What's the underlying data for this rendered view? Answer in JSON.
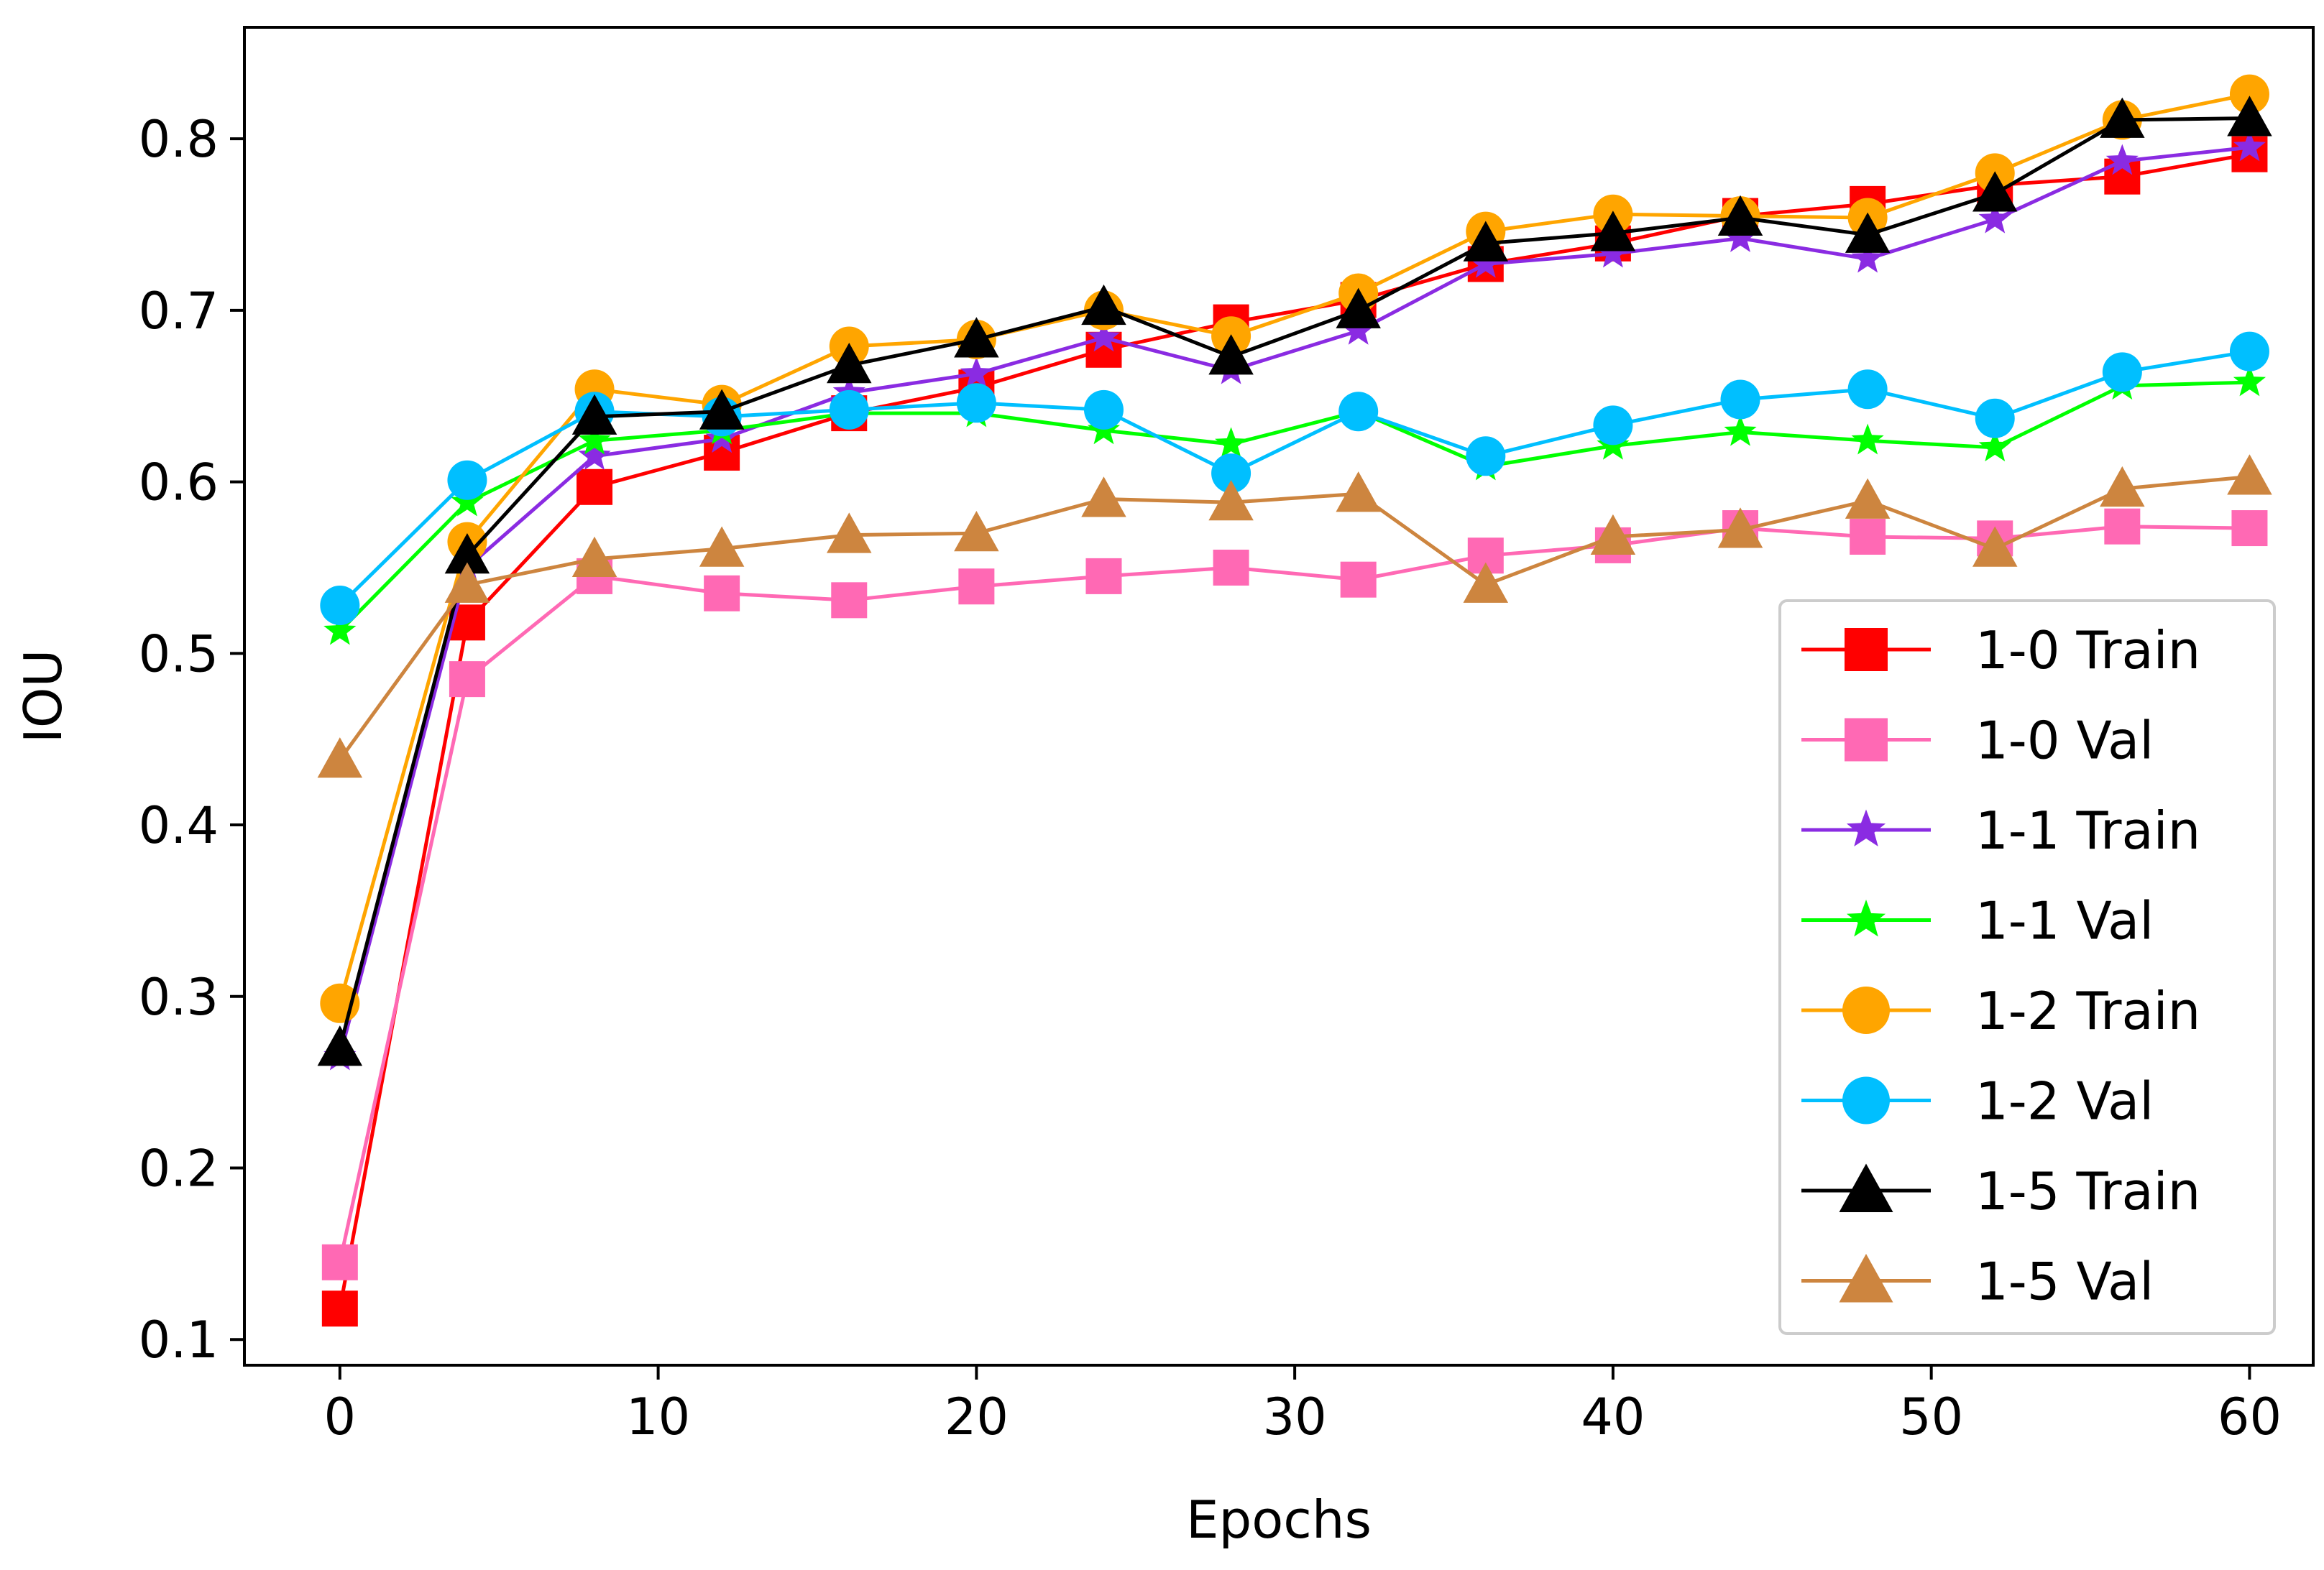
{
  "chart_data": {
    "type": "line",
    "title": "",
    "xlabel": "Epochs",
    "ylabel": "IOU",
    "xlim": [
      -3,
      62
    ],
    "ylim": [
      0.085,
      0.865
    ],
    "xticks": [
      0,
      10,
      20,
      30,
      40,
      50,
      60
    ],
    "xtick_labels": [
      "0",
      "10",
      "20",
      "30",
      "40",
      "50",
      "60"
    ],
    "yticks": [
      0.1,
      0.2,
      0.3,
      0.4,
      0.5,
      0.6,
      0.7,
      0.8
    ],
    "ytick_labels": [
      "0.1",
      "0.2",
      "0.3",
      "0.4",
      "0.5",
      "0.6",
      "0.7",
      "0.8"
    ],
    "grid": false,
    "legend_position": "lower-right",
    "x": [
      0,
      4,
      8,
      12,
      16,
      20,
      24,
      28,
      32,
      36,
      40,
      44,
      48,
      52,
      56,
      60
    ],
    "series": [
      {
        "name": "1-0 Train",
        "color": "#ff0000",
        "marker": "square",
        "values": [
          0.118,
          0.518,
          0.597,
          0.617,
          0.64,
          0.655,
          0.677,
          0.693,
          0.706,
          0.727,
          0.739,
          0.755,
          0.762,
          0.773,
          0.778,
          0.791
        ]
      },
      {
        "name": "1-0 Val",
        "color": "#ff69b4",
        "marker": "square",
        "values": [
          0.145,
          0.485,
          0.545,
          0.535,
          0.531,
          0.539,
          0.545,
          0.55,
          0.543,
          0.557,
          0.563,
          0.573,
          0.568,
          0.567,
          0.574,
          0.573
        ]
      },
      {
        "name": "1-1 Train",
        "color": "#8a2be2",
        "marker": "star",
        "values": [
          0.265,
          0.55,
          0.615,
          0.625,
          0.652,
          0.663,
          0.684,
          0.665,
          0.688,
          0.727,
          0.733,
          0.742,
          0.73,
          0.753,
          0.787,
          0.795
        ]
      },
      {
        "name": "1-1 Val",
        "color": "#00ff00",
        "marker": "star",
        "values": [
          0.513,
          0.588,
          0.624,
          0.63,
          0.64,
          0.64,
          0.63,
          0.622,
          0.641,
          0.609,
          0.621,
          0.629,
          0.624,
          0.62,
          0.656,
          0.658
        ]
      },
      {
        "name": "1-2 Train",
        "color": "#ffa500",
        "marker": "circle",
        "values": [
          0.296,
          0.565,
          0.654,
          0.645,
          0.679,
          0.683,
          0.7,
          0.685,
          0.71,
          0.746,
          0.756,
          0.755,
          0.754,
          0.78,
          0.811,
          0.826
        ]
      },
      {
        "name": "1-2 Val",
        "color": "#00bfff",
        "marker": "circle",
        "values": [
          0.528,
          0.601,
          0.641,
          0.638,
          0.642,
          0.646,
          0.642,
          0.605,
          0.641,
          0.615,
          0.633,
          0.648,
          0.654,
          0.637,
          0.664,
          0.676
        ]
      },
      {
        "name": "1-5 Train",
        "color": "#000000",
        "marker": "triangle",
        "values": [
          0.27,
          0.557,
          0.638,
          0.641,
          0.668,
          0.683,
          0.702,
          0.673,
          0.7,
          0.739,
          0.745,
          0.754,
          0.744,
          0.768,
          0.811,
          0.812
        ]
      },
      {
        "name": "1-5 Val",
        "color": "#cd853f",
        "marker": "triangle",
        "values": [
          0.438,
          0.54,
          0.555,
          0.561,
          0.569,
          0.57,
          0.59,
          0.588,
          0.593,
          0.54,
          0.568,
          0.572,
          0.589,
          0.561,
          0.596,
          0.603
        ]
      }
    ]
  }
}
